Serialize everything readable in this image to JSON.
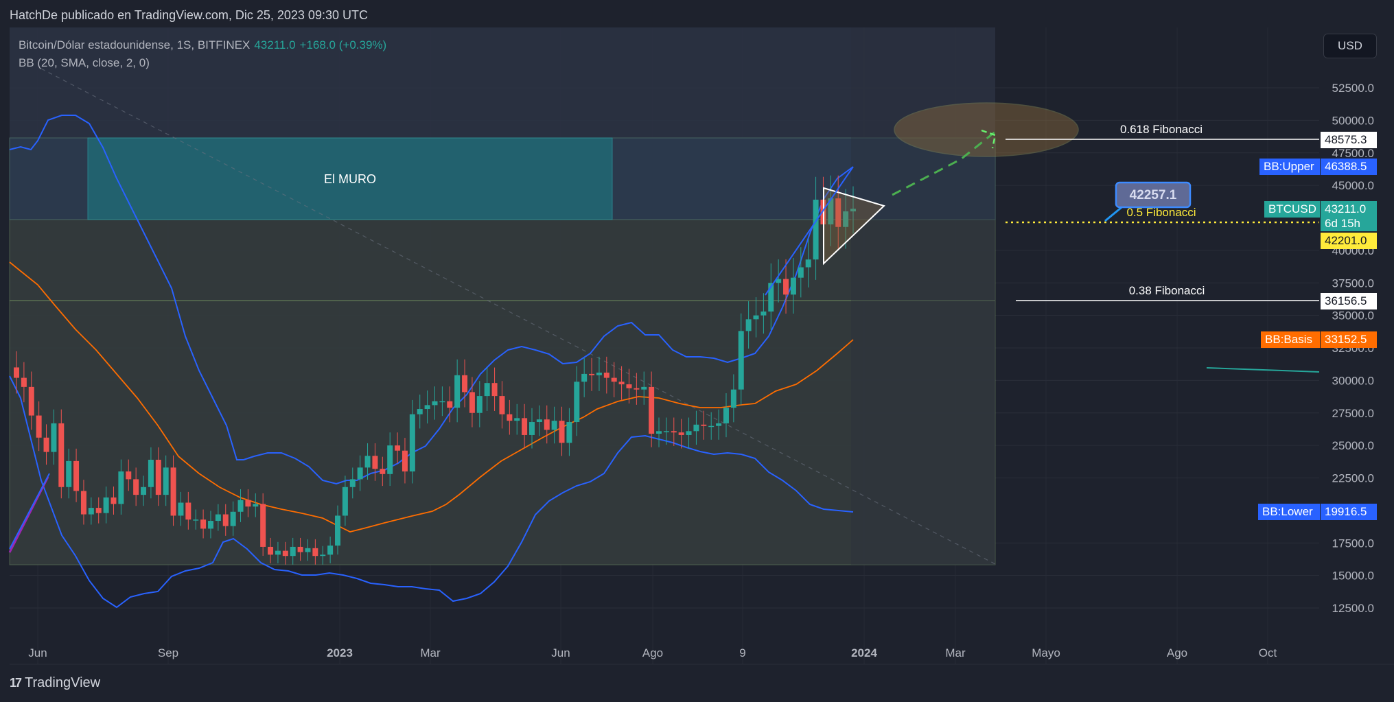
{
  "header": {
    "title": "HatchDe publicado en TradingView.com, Dic 25, 2023 09:30 UTC"
  },
  "legend": {
    "symbol": "Bitcoin/Dólar estadounidense, 1S, BITFINEX",
    "price": "43211.0",
    "change": "+168.0 (+0.39%)",
    "indicator": "BB (20, SMA, close, 2, 0)"
  },
  "toolbar": {
    "currency": "USD"
  },
  "price_axis": {
    "ticks": [
      "52500.0",
      "50000.0",
      "47500.0",
      "45000.0",
      "40000.0",
      "37500.0",
      "35000.0",
      "32500.0",
      "30000.0",
      "27500.0",
      "25000.0",
      "22500.0",
      "17500.0",
      "15000.0",
      "12500.0"
    ]
  },
  "time_axis": {
    "ticks": [
      "Jun",
      "Sep",
      "2023",
      "Mar",
      "Jun",
      "Ago",
      "9",
      "2024",
      "Mar",
      "Mayo",
      "Ago",
      "Oct"
    ]
  },
  "drawings": {
    "muro_label": "El MURO",
    "fib_0618": "0.618 Fibonacci",
    "fib_05": "0.5 Fibonacci",
    "fib_038": "0.38 Fibonacci",
    "target_label": "42257.1"
  },
  "price_tags": {
    "fib_0618_value": "48575.3",
    "bb_upper_label": "BB:Upper",
    "bb_upper_value": "46388.5",
    "symbol_label": "BTCUSD",
    "current_price": "43211.0",
    "countdown": "6d 15h",
    "fib_05_value": "42201.0",
    "fib_038_value": "36156.5",
    "bb_basis_label": "BB:Basis",
    "bb_basis_value": "33152.5",
    "bb_lower_label": "BB:Lower",
    "bb_lower_value": "19916.5"
  },
  "colors": {
    "background": "#1e222d",
    "bull": "#26a69a",
    "bear": "#ef5350",
    "bb_band": "#2962ff",
    "bb_basis": "#ff6d00",
    "fib_05": "#ffeb3b",
    "projection": "#4caf50"
  },
  "footer": {
    "brand": "TradingView"
  }
}
